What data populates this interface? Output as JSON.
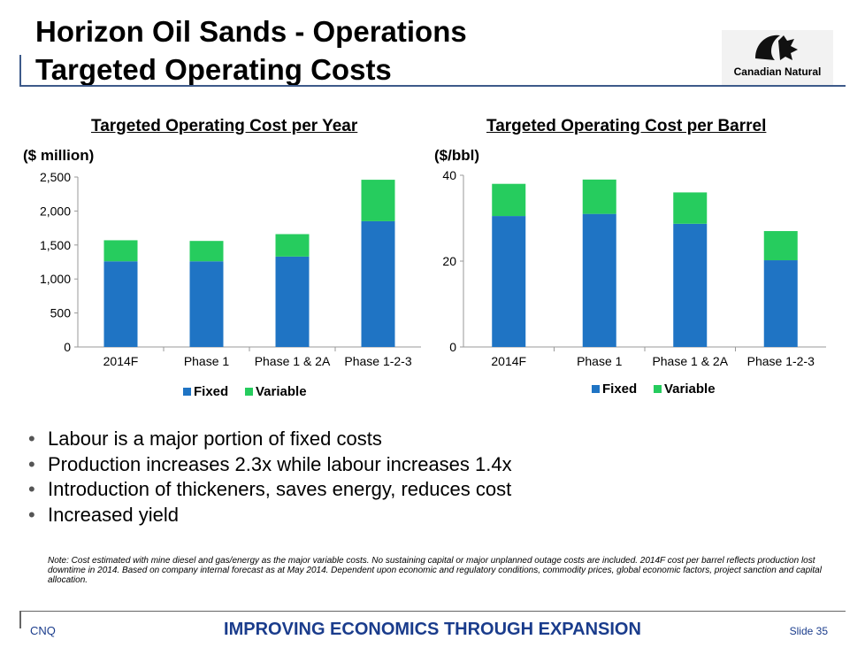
{
  "header": {
    "title_line1": "Horizon Oil Sands - Operations",
    "title_line2": "Targeted Operating Costs",
    "logo_text": "Canadian Natural"
  },
  "colors": {
    "fixed": "#1f74c4",
    "variable": "#26cc5e",
    "footer": "#1a3c8c"
  },
  "chart_data": [
    {
      "type": "bar",
      "stacked": true,
      "title": "Targeted Operating Cost per Year",
      "ylabel": "($ million)",
      "categories": [
        "2014F",
        "Phase 1",
        "Phase 1 & 2A",
        "Phase 1-2-3"
      ],
      "series": [
        {
          "name": "Fixed",
          "values": [
            1260,
            1260,
            1330,
            1850
          ]
        },
        {
          "name": "Variable",
          "values": [
            310,
            300,
            330,
            610
          ]
        }
      ],
      "ylim": [
        0,
        2500
      ],
      "yticks": [
        0,
        500,
        1000,
        1500,
        2000,
        2500
      ],
      "ytick_labels": [
        "0",
        "500",
        "1,000",
        "1,500",
        "2,000",
        "2,500"
      ],
      "legend": "bottom"
    },
    {
      "type": "bar",
      "stacked": true,
      "title": "Targeted Operating Cost per Barrel",
      "ylabel": "($/bbl)",
      "categories": [
        "2014F",
        "Phase 1",
        "Phase 1 & 2A",
        "Phase 1-2-3"
      ],
      "series": [
        {
          "name": "Fixed",
          "values": [
            30.5,
            31,
            28.7,
            20.2
          ]
        },
        {
          "name": "Variable",
          "values": [
            7.5,
            8,
            7.3,
            6.8
          ]
        }
      ],
      "ylim": [
        0,
        40
      ],
      "yticks": [
        0,
        20,
        40
      ],
      "ytick_labels": [
        "0",
        "20",
        "40"
      ],
      "legend": "bottom"
    }
  ],
  "bullets": [
    "Labour is a major portion of fixed costs",
    "Production increases 2.3x while labour increases 1.4x",
    "Introduction of thickeners, saves energy, reduces cost",
    "Increased yield"
  ],
  "note": "Note: Cost estimated with mine diesel and gas/energy as the major variable costs. No sustaining capital or major unplanned outage costs are included. 2014F cost per barrel reflects production lost downtime in 2014. Based on company internal forecast as at May 2014. Dependent upon economic and regulatory conditions, commodity prices, global economic factors, project sanction and capital allocation.",
  "footer": {
    "left": "CNQ",
    "center": "IMPROVING ECONOMICS THROUGH EXPANSION",
    "right": "Slide 35"
  }
}
